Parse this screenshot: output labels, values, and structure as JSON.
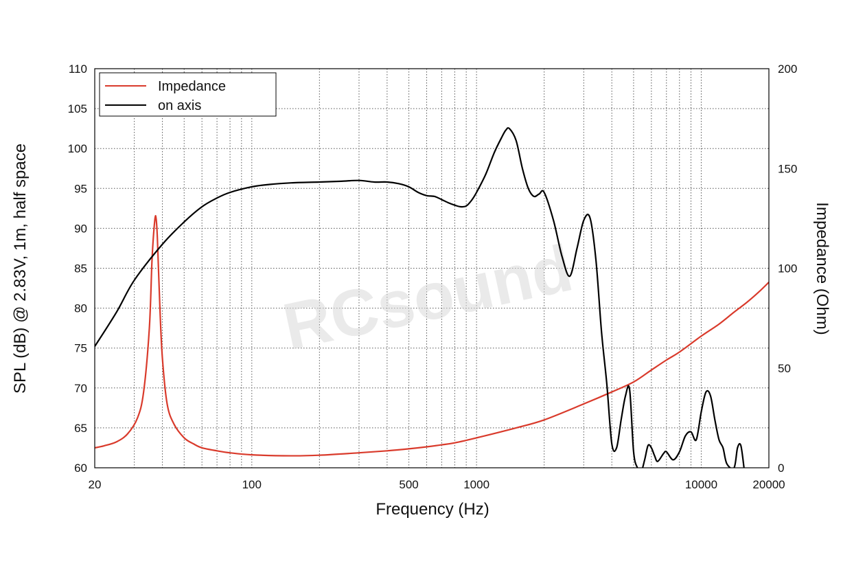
{
  "chart_data": {
    "type": "line",
    "title": "",
    "watermark": "RCsound",
    "xlabel": "Frequency (Hz)",
    "ylabel_left": "SPL (dB) @ 2.83V, 1m, half space",
    "ylabel_right": "Impedance (Ohm)",
    "x_scale": "log",
    "xlim": [
      20,
      20000
    ],
    "ylim_left": [
      60,
      110
    ],
    "ylim_right": [
      0,
      200
    ],
    "x_ticks": [
      20,
      100,
      500,
      1000,
      10000,
      20000
    ],
    "x_tick_labels": [
      "20",
      "100",
      "500",
      "1000",
      "10000",
      "20000"
    ],
    "y_left_ticks": [
      60,
      65,
      70,
      75,
      80,
      85,
      90,
      95,
      100,
      105,
      110
    ],
    "y_left_tick_labels": [
      "60",
      "65",
      "70",
      "75",
      "80",
      "85",
      "90",
      "95",
      "100",
      "105",
      "110"
    ],
    "y_right_ticks": [
      0,
      50,
      100,
      150,
      200
    ],
    "y_right_tick_labels": [
      "0",
      "50",
      "100",
      "150",
      "200"
    ],
    "grid": true,
    "legend_position": "top-left",
    "series": [
      {
        "name": "Impedance",
        "axis": "right",
        "color": "#d93a2b",
        "x": [
          20,
          22,
          25,
          28,
          31,
          33,
          35,
          36,
          37,
          37.5,
          38,
          39,
          40,
          42,
          45,
          50,
          55,
          60,
          70,
          80,
          100,
          150,
          200,
          300,
          400,
          500,
          600,
          700,
          800,
          1000,
          1500,
          2000,
          3000,
          4000,
          5000,
          6000,
          7000,
          8000,
          10000,
          12000,
          14000,
          16000,
          18000,
          20000
        ],
        "y": [
          10,
          11,
          13,
          17,
          25,
          38,
          70,
          105,
          124,
          125,
          115,
          80,
          55,
          32,
          22,
          15,
          12,
          10,
          8.5,
          7.5,
          6.5,
          6,
          6.3,
          7.5,
          8.5,
          9.5,
          10.5,
          11.5,
          12.5,
          15,
          20,
          24,
          32,
          38,
          43,
          49,
          54,
          58,
          66,
          72,
          78,
          83,
          88,
          93
        ]
      },
      {
        "name": "on axis",
        "axis": "left",
        "color": "#000000",
        "x": [
          20,
          25,
          30,
          40,
          50,
          60,
          70,
          80,
          100,
          120,
          150,
          200,
          250,
          300,
          350,
          400,
          450,
          500,
          550,
          600,
          650,
          700,
          750,
          800,
          850,
          900,
          950,
          1000,
          1100,
          1200,
          1300,
          1350,
          1400,
          1500,
          1600,
          1700,
          1800,
          1900,
          2000,
          2200,
          2400,
          2600,
          2800,
          3000,
          3200,
          3400,
          3600,
          3800,
          4000,
          4200,
          4400,
          4600,
          4800,
          5000,
          5200,
          5400,
          5600,
          5800,
          6000,
          6200,
          6400,
          6800,
          7000,
          7500,
          8000,
          8500,
          9000,
          9500,
          10000,
          10500,
          11000,
          11500,
          12000,
          12500,
          13000,
          14000,
          14500,
          15000,
          15500
        ],
        "y": [
          75.2,
          79.5,
          83.5,
          88.0,
          90.8,
          92.7,
          93.8,
          94.5,
          95.2,
          95.5,
          95.7,
          95.8,
          95.9,
          96.0,
          95.8,
          95.8,
          95.6,
          95.2,
          94.5,
          94.1,
          94.0,
          93.6,
          93.2,
          92.9,
          92.7,
          92.8,
          93.5,
          94.5,
          96.8,
          99.5,
          101.5,
          102.3,
          102.5,
          101.0,
          97.5,
          95.0,
          94.0,
          94.3,
          94.5,
          91.0,
          86.5,
          84.0,
          87.5,
          91.0,
          91.3,
          86.0,
          77.0,
          70.5,
          63.0,
          62.5,
          66.0,
          69.0,
          69.8,
          62.0,
          60.0,
          59.5,
          61.0,
          62.8,
          62.5,
          61.5,
          60.8,
          61.8,
          62.0,
          61.0,
          62.0,
          64.0,
          64.5,
          63.5,
          67.0,
          69.5,
          69.0,
          66.0,
          63.5,
          62.5,
          60.5,
          60.0,
          62.5,
          62.8,
          60.0
        ]
      }
    ]
  }
}
